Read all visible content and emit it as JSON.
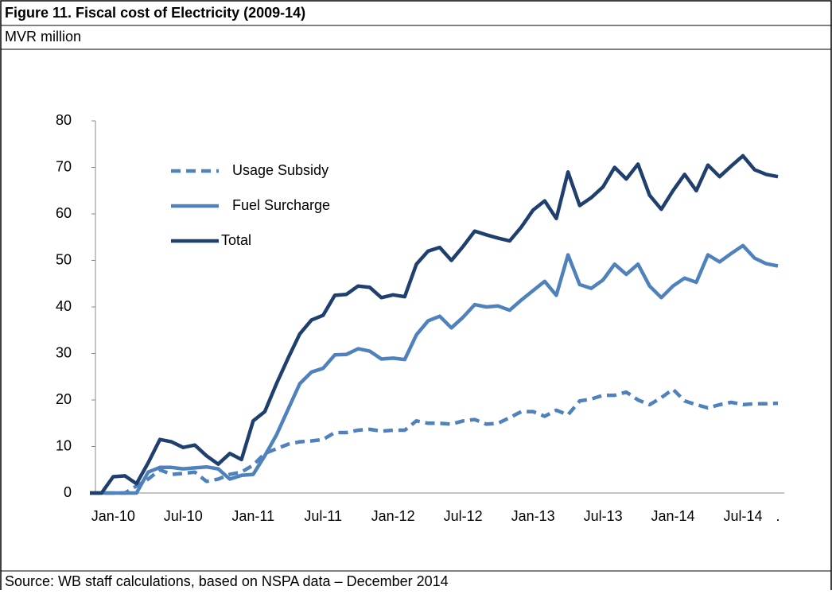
{
  "chart_data": {
    "type": "line",
    "title": "Figure 11. Fiscal cost of Electricity (2009-14)",
    "subtitle": "MVR million",
    "source": "Source: WB staff calculations, based on NSPA data – December 2014",
    "categories": [
      null,
      null,
      "Jan-10",
      null,
      null,
      null,
      null,
      null,
      "Jul-10",
      null,
      null,
      null,
      null,
      null,
      "Jan-11",
      null,
      null,
      null,
      null,
      null,
      "Jul-11",
      null,
      null,
      null,
      null,
      null,
      "Jan-12",
      null,
      null,
      null,
      null,
      null,
      "Jul-12",
      null,
      null,
      null,
      null,
      null,
      "Jan-13",
      null,
      null,
      null,
      null,
      null,
      "Jul-13",
      null,
      null,
      null,
      null,
      null,
      "Jan-14",
      null,
      null,
      null,
      null,
      null,
      "Jul-14",
      null,
      null,
      "."
    ],
    "series": [
      {
        "name": "Usage Subsidy",
        "color": "#4f81bd",
        "dashed": true,
        "values": [
          0,
          0,
          0,
          0,
          1.5,
          3,
          5,
          4,
          4.2,
          4.5,
          2.5,
          3,
          4,
          4.5,
          6,
          8.5,
          9.5,
          10.5,
          11,
          11.2,
          11.5,
          13,
          13,
          13.5,
          13.7,
          13.3,
          13.5,
          13.5,
          15.5,
          15,
          15,
          14.8,
          15.5,
          15.8,
          14.8,
          15,
          16.2,
          17.5,
          17.5,
          16.5,
          17.8,
          16.8,
          19.8,
          20.2,
          21,
          21,
          21.7,
          20,
          19,
          20.5,
          22.3,
          19.8,
          19,
          18.3,
          19,
          19.5,
          19,
          19.2,
          19.2,
          19.3
        ]
      },
      {
        "name": "Fuel Surcharge",
        "color": "#4f81bd",
        "dashed": false,
        "values": [
          0,
          0,
          0,
          0,
          0,
          4.5,
          5.5,
          5.5,
          5.2,
          5.4,
          5.6,
          5.2,
          3,
          3.8,
          4,
          8,
          12.5,
          18,
          23.5,
          26,
          26.8,
          29.7,
          29.8,
          31,
          30.5,
          28.8,
          29,
          28.7,
          34,
          37,
          38,
          35.5,
          37.8,
          40.5,
          40,
          40.2,
          39.3,
          41.5,
          43.5,
          45.5,
          42.5,
          51.2,
          44.8,
          44,
          45.8,
          49.2,
          47,
          49.2,
          44.5,
          42,
          44.5,
          46.2,
          45.3,
          51.2,
          49.7,
          51.5,
          53.2,
          50.5,
          49.3,
          48.8
        ]
      },
      {
        "name": "Total",
        "color": "#1f3f6e",
        "dashed": false,
        "values": [
          0,
          0,
          3.5,
          3.7,
          2,
          6.5,
          11.5,
          11,
          9.8,
          10.3,
          8,
          6.2,
          8.5,
          7.2,
          15.5,
          17.5,
          23.5,
          29,
          34.2,
          37.2,
          38.2,
          42.5,
          42.7,
          44.5,
          44.2,
          42,
          42.6,
          42.2,
          49.2,
          52,
          52.8,
          50,
          53,
          56.3,
          55.5,
          54.8,
          54.2,
          57.2,
          60.8,
          62.8,
          59,
          69,
          61.8,
          63.5,
          65.8,
          70,
          67.5,
          70.7,
          64,
          61,
          65,
          68.5,
          65,
          70.5,
          68,
          70.3,
          72.5,
          69.5,
          68.5,
          68
        ]
      }
    ],
    "ylim": [
      0,
      80
    ],
    "yticks": [
      0,
      10,
      20,
      30,
      40,
      50,
      60,
      70,
      80
    ],
    "grid": false,
    "legend": "upper left"
  }
}
